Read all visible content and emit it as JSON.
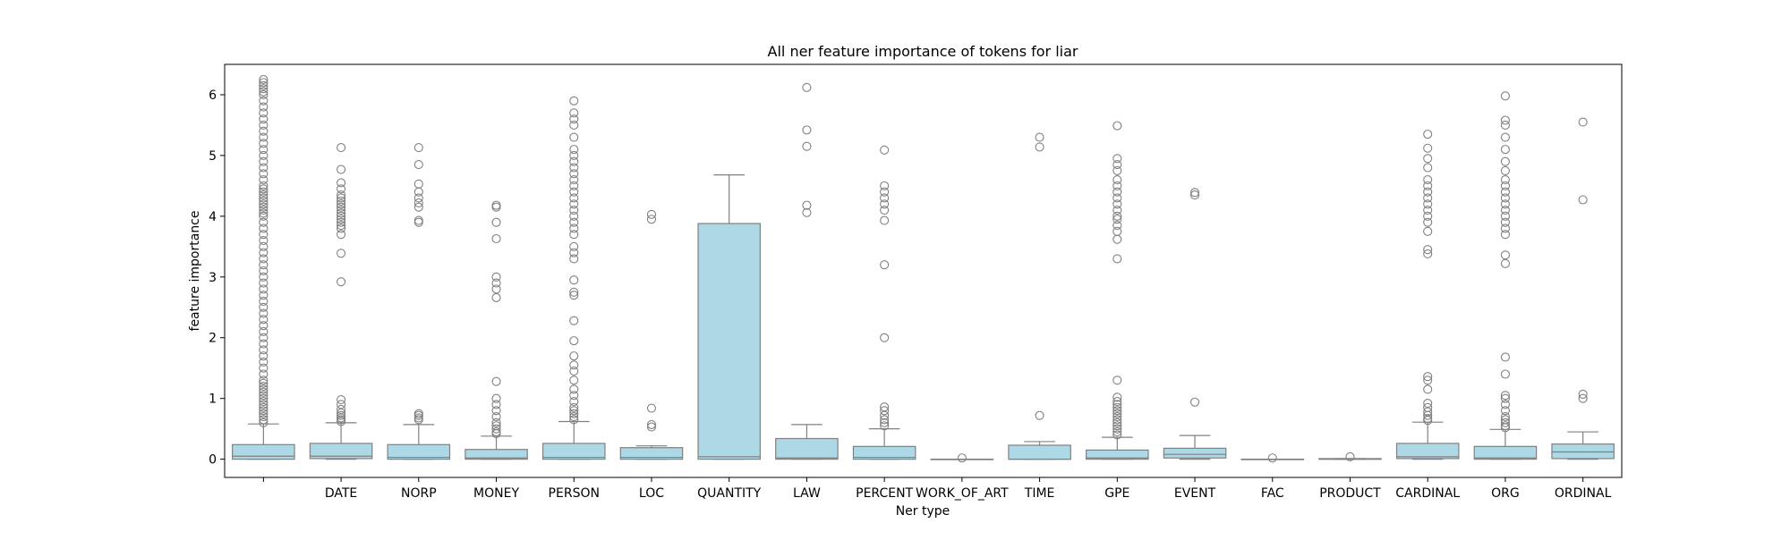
{
  "chart_data": {
    "type": "box",
    "title": "All ner feature importance of tokens for liar",
    "xlabel": "Ner type",
    "ylabel": "feature importance",
    "ylim": [
      -0.3,
      6.5
    ],
    "yticks": [
      0,
      1,
      2,
      3,
      4,
      5,
      6
    ],
    "box_color": "#add8e6",
    "line_color": "#808080",
    "categories": [
      "",
      "DATE",
      "NORP",
      "MONEY",
      "PERSON",
      "LOC",
      "QUANTITY",
      "LAW",
      "PERCENT",
      "WORK_OF_ART",
      "TIME",
      "GPE",
      "EVENT",
      "FAC",
      "PRODUCT",
      "CARDINAL",
      "ORG",
      "ORDINAL"
    ],
    "boxes": [
      {
        "category": "",
        "q1": 0.0,
        "median": 0.05,
        "q3": 0.24,
        "whisker_low": 0.0,
        "whisker_high": 0.58,
        "outliers": [
          0.6,
          0.65,
          0.7,
          0.75,
          0.8,
          0.85,
          0.9,
          0.95,
          1.0,
          1.05,
          1.1,
          1.15,
          1.2,
          1.25,
          1.3,
          1.4,
          1.5,
          1.6,
          1.7,
          1.8,
          1.9,
          2.0,
          2.1,
          2.2,
          2.3,
          2.4,
          2.5,
          2.6,
          2.7,
          2.8,
          2.9,
          3.0,
          3.1,
          3.2,
          3.3,
          3.4,
          3.5,
          3.6,
          3.7,
          3.8,
          3.9,
          4.0,
          4.05,
          4.1,
          4.15,
          4.2,
          4.25,
          4.3,
          4.35,
          4.4,
          4.45,
          4.5,
          4.6,
          4.7,
          4.8,
          4.9,
          5.0,
          5.1,
          5.2,
          5.3,
          5.4,
          5.5,
          5.6,
          5.7,
          5.8,
          5.9,
          6.0,
          6.05,
          6.1,
          6.15,
          6.2,
          6.25
        ]
      },
      {
        "category": "DATE",
        "q1": 0.01,
        "median": 0.05,
        "q3": 0.26,
        "whisker_low": 0.0,
        "whisker_high": 0.6,
        "outliers": [
          0.62,
          0.65,
          0.68,
          0.72,
          0.76,
          0.82,
          0.9,
          0.98,
          2.92,
          3.39,
          3.7,
          3.8,
          3.85,
          3.9,
          3.95,
          4.0,
          4.05,
          4.1,
          4.15,
          4.2,
          4.25,
          4.3,
          4.35,
          4.45,
          4.55,
          4.77,
          5.13
        ]
      },
      {
        "category": "NORP",
        "q1": 0.0,
        "median": 0.03,
        "q3": 0.24,
        "whisker_low": 0.0,
        "whisker_high": 0.57,
        "outliers": [
          0.65,
          0.68,
          0.72,
          0.75,
          3.9,
          3.93,
          4.15,
          4.22,
          4.3,
          4.4,
          4.53,
          4.85,
          5.13
        ]
      },
      {
        "category": "MONEY",
        "q1": 0.0,
        "median": 0.02,
        "q3": 0.16,
        "whisker_low": 0.0,
        "whisker_high": 0.38,
        "outliers": [
          0.42,
          0.45,
          0.5,
          0.55,
          0.6,
          0.7,
          0.8,
          0.9,
          1.0,
          1.28,
          2.66,
          2.8,
          2.9,
          3.0,
          3.63,
          3.9,
          4.15,
          4.18
        ]
      },
      {
        "category": "PERSON",
        "q1": 0.0,
        "median": 0.03,
        "q3": 0.26,
        "whisker_low": 0.0,
        "whisker_high": 0.62,
        "outliers": [
          0.65,
          0.7,
          0.75,
          0.8,
          0.85,
          0.95,
          1.05,
          1.15,
          1.3,
          1.45,
          1.55,
          1.7,
          1.95,
          2.28,
          2.7,
          2.75,
          2.95,
          3.3,
          3.4,
          3.5,
          3.7,
          3.8,
          3.9,
          4.0,
          4.1,
          4.2,
          4.3,
          4.4,
          4.5,
          4.6,
          4.7,
          4.8,
          4.9,
          5.0,
          5.1,
          5.3,
          5.5,
          5.6,
          5.7,
          5.9
        ]
      },
      {
        "category": "LOC",
        "q1": 0.0,
        "median": 0.03,
        "q3": 0.19,
        "whisker_low": 0.0,
        "whisker_high": 0.22,
        "outliers": [
          0.53,
          0.57,
          0.84,
          3.95,
          4.03
        ]
      },
      {
        "category": "QUANTITY",
        "q1": 0.0,
        "median": 0.04,
        "q3": 3.88,
        "whisker_low": 0.0,
        "whisker_high": 4.68,
        "outliers": []
      },
      {
        "category": "LAW",
        "q1": 0.0,
        "median": 0.02,
        "q3": 0.34,
        "whisker_low": 0.0,
        "whisker_high": 0.57,
        "outliers": [
          4.06,
          4.18,
          5.15,
          5.42,
          6.12
        ]
      },
      {
        "category": "PERCENT",
        "q1": 0.0,
        "median": 0.03,
        "q3": 0.21,
        "whisker_low": 0.0,
        "whisker_high": 0.5,
        "outliers": [
          0.55,
          0.6,
          0.65,
          0.72,
          0.8,
          0.86,
          2.0,
          3.2,
          3.93,
          4.1,
          4.2,
          4.3,
          4.4,
          4.5,
          5.09
        ]
      },
      {
        "category": "WORK_OF_ART",
        "q1": 0.0,
        "median": 0.0,
        "q3": 0.0,
        "whisker_low": 0.0,
        "whisker_high": 0.0,
        "outliers": [
          0.02
        ]
      },
      {
        "category": "TIME",
        "q1": 0.0,
        "median": 0.0,
        "q3": 0.23,
        "whisker_low": 0.0,
        "whisker_high": 0.29,
        "outliers": [
          0.72,
          5.14,
          5.3
        ]
      },
      {
        "category": "GPE",
        "q1": 0.0,
        "median": 0.02,
        "q3": 0.15,
        "whisker_low": 0.0,
        "whisker_high": 0.36,
        "outliers": [
          0.4,
          0.45,
          0.5,
          0.55,
          0.6,
          0.65,
          0.7,
          0.75,
          0.8,
          0.85,
          0.9,
          0.95,
          1.02,
          1.3,
          3.3,
          3.62,
          3.75,
          3.85,
          3.95,
          4.0,
          4.1,
          4.2,
          4.3,
          4.4,
          4.5,
          4.6,
          4.75,
          4.85,
          4.95,
          5.49
        ]
      },
      {
        "category": "EVENT",
        "q1": 0.02,
        "median": 0.08,
        "q3": 0.18,
        "whisker_low": 0.0,
        "whisker_high": 0.39,
        "outliers": [
          0.94,
          4.35,
          4.39
        ]
      },
      {
        "category": "FAC",
        "q1": 0.0,
        "median": 0.0,
        "q3": 0.0,
        "whisker_low": 0.0,
        "whisker_high": 0.0,
        "outliers": [
          0.02
        ]
      },
      {
        "category": "PRODUCT",
        "q1": 0.0,
        "median": 0.0,
        "q3": 0.01,
        "whisker_low": 0.0,
        "whisker_high": 0.01,
        "outliers": [
          0.04
        ]
      },
      {
        "category": "CARDINAL",
        "q1": 0.01,
        "median": 0.04,
        "q3": 0.26,
        "whisker_low": 0.0,
        "whisker_high": 0.61,
        "outliers": [
          0.64,
          0.67,
          0.72,
          0.78,
          0.85,
          0.92,
          1.15,
          1.3,
          1.36,
          3.38,
          3.45,
          3.75,
          3.9,
          4.0,
          4.1,
          4.2,
          4.3,
          4.4,
          4.5,
          4.6,
          4.8,
          4.95,
          5.12,
          5.35
        ]
      },
      {
        "category": "ORG",
        "q1": 0.0,
        "median": 0.02,
        "q3": 0.21,
        "whisker_low": 0.0,
        "whisker_high": 0.49,
        "outliers": [
          0.52,
          0.55,
          0.6,
          0.65,
          0.7,
          0.8,
          0.9,
          1.0,
          1.05,
          1.4,
          1.68,
          3.22,
          3.36,
          3.7,
          3.8,
          3.9,
          4.0,
          4.1,
          4.2,
          4.3,
          4.4,
          4.5,
          4.6,
          4.75,
          4.9,
          5.1,
          5.3,
          5.5,
          5.58,
          5.98
        ]
      },
      {
        "category": "ORDINAL",
        "q1": 0.01,
        "median": 0.12,
        "q3": 0.25,
        "whisker_low": 0.0,
        "whisker_high": 0.45,
        "outliers": [
          1.0,
          1.07,
          4.27,
          5.55
        ]
      }
    ]
  }
}
